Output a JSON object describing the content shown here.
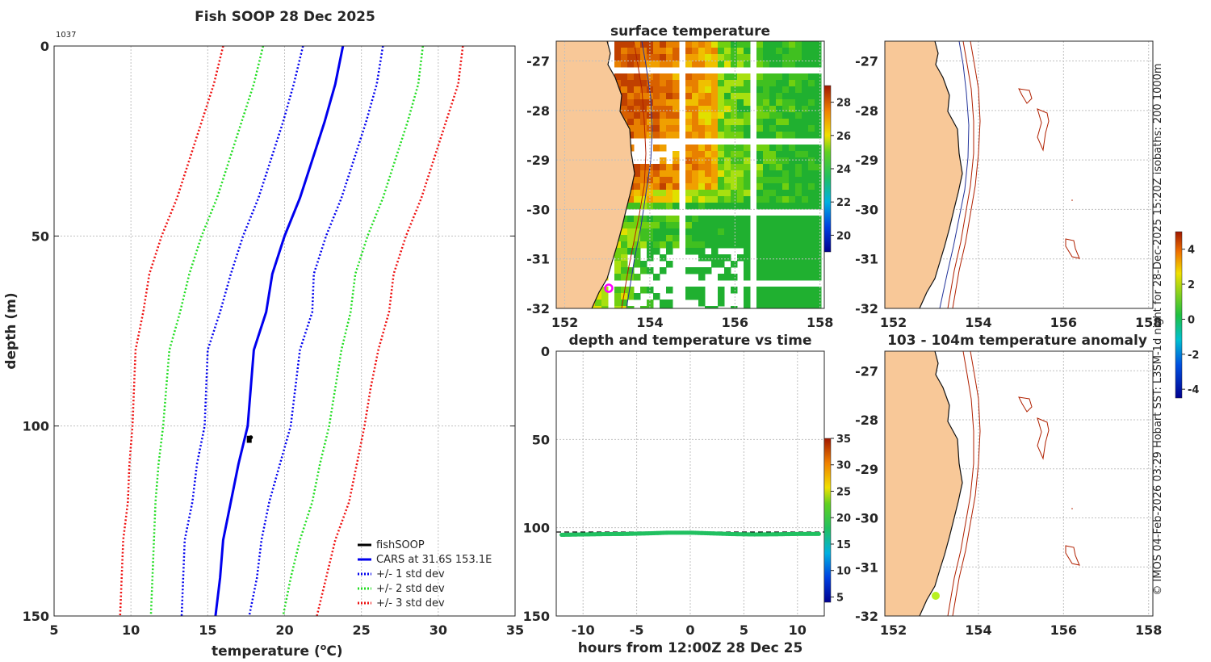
{
  "colors": {
    "fishsoop": "#000000",
    "cars": "#0000ee",
    "std1": "#0000ee",
    "std2": "#22dd22",
    "std3": "#ee1111",
    "land": "#f8c898",
    "isobath200": "#ee2200",
    "isobath1000": "#22339a",
    "marker": "#ff00ff",
    "anomaly_point": "#b8f020"
  },
  "profile": {
    "title": "Fish SOOP 28 Dec 2025",
    "corner_label": "1037",
    "xlabel_main": "temperature (",
    "xlabel_sup": "o",
    "xlabel_end": "C)",
    "ylabel": "depth (m)",
    "legend": [
      "fishSOOP",
      "CARS at 31.6S 153.1E",
      "+/- 1 std dev",
      "+/- 2 std dev",
      "+/- 3 std dev"
    ]
  },
  "sst": {
    "title": "surface temperature",
    "colorbar_ticks": [
      "28",
      "26",
      "24",
      "22",
      "20"
    ]
  },
  "timeseries": {
    "title": "depth and temperature vs time",
    "xlabel": "hours from 12:00Z 28 Dec 25",
    "colorbar_ticks": [
      "35",
      "30",
      "25",
      "20",
      "15",
      "10",
      "5"
    ]
  },
  "anomaly": {
    "title": "103 - 104m temperature anomaly",
    "colorbar_ticks": [
      "4",
      "2",
      "0",
      "-2",
      "-4"
    ]
  },
  "side_note": "© IMOS 04-Feb-2026 03:29 Hobart SST: L3SM-1d night for 28-Dec-2025 15:20Z isobaths: 200  1000m",
  "chart_data": [
    {
      "type": "line",
      "title": "Fish SOOP 28 Dec 2025",
      "xlabel": "temperature (oC)",
      "ylabel": "depth (m)",
      "xlim": [
        5,
        35
      ],
      "ylim": [
        150,
        0
      ],
      "xticks": [
        "5",
        "10",
        "15",
        "20",
        "25",
        "30",
        "35"
      ],
      "yticks": [
        "0",
        "50",
        "100",
        "150"
      ],
      "depth": [
        0,
        10,
        20,
        30,
        40,
        50,
        60,
        70,
        80,
        90,
        100,
        110,
        120,
        130,
        140,
        150
      ],
      "series": [
        {
          "name": "CARS at 31.6S 153.1E",
          "style": "solid",
          "color": "cars",
          "values": [
            23.8,
            23.3,
            22.6,
            21.8,
            21.0,
            20.0,
            19.2,
            18.8,
            18.0,
            17.8,
            17.6,
            17.0,
            16.5,
            16.0,
            15.8,
            15.5
          ]
        },
        {
          "name": "+/- 1 std dev",
          "style": "dotted",
          "color": "std1",
          "values": [
            21.2,
            20.6,
            19.9,
            19.1,
            18.3,
            17.3,
            16.5,
            15.8,
            15.0,
            14.9,
            14.8,
            14.3,
            14.0,
            13.5,
            13.4,
            13.3
          ]
        },
        {
          "name": "+/- 1 std dev",
          "style": "dotted",
          "color": "std1",
          "values": [
            26.4,
            26.0,
            25.3,
            24.5,
            23.7,
            22.7,
            21.9,
            21.8,
            21.0,
            20.7,
            20.4,
            19.7,
            19.0,
            18.5,
            18.2,
            17.7
          ]
        },
        {
          "name": "+/- 2 std dev",
          "style": "dotted",
          "color": "std2",
          "values": [
            18.6,
            18.0,
            17.2,
            16.4,
            15.6,
            14.6,
            13.8,
            13.2,
            12.5,
            12.3,
            12.1,
            11.8,
            11.6,
            11.5,
            11.4,
            11.3
          ]
        },
        {
          "name": "+/- 2 std dev",
          "style": "dotted",
          "color": "std2",
          "values": [
            29.0,
            28.7,
            28.0,
            27.2,
            26.4,
            25.4,
            24.6,
            24.3,
            23.7,
            23.3,
            22.9,
            22.3,
            21.8,
            21.0,
            20.4,
            19.9
          ]
        },
        {
          "name": "+/- 3 std dev",
          "style": "dotted",
          "color": "std3",
          "values": [
            16.0,
            15.4,
            14.6,
            13.8,
            13.0,
            12.0,
            11.2,
            10.8,
            10.3,
            10.2,
            10.1,
            9.9,
            9.8,
            9.5,
            9.4,
            9.3
          ]
        },
        {
          "name": "+/- 3 std dev",
          "style": "dotted",
          "color": "std3",
          "values": [
            31.6,
            31.3,
            30.5,
            29.7,
            28.9,
            27.9,
            27.1,
            26.8,
            26.1,
            25.6,
            25.2,
            24.7,
            24.2,
            23.3,
            22.7,
            22.1
          ]
        }
      ],
      "fishsoop": {
        "name": "fishSOOP",
        "temperature": 17.7,
        "depth_range": [
          103,
          104
        ]
      }
    },
    {
      "type": "heatmap",
      "title": "surface temperature",
      "xlim": [
        151.8,
        158.1
      ],
      "ylim": [
        -32,
        -26.6
      ],
      "xticks": [
        "152",
        "154",
        "156",
        "158"
      ],
      "yticks": [
        "-27",
        "-28",
        "-29",
        "-30",
        "-31",
        "-32"
      ],
      "colorbar": {
        "range": [
          19,
          29
        ],
        "ticks": [
          "20",
          "22",
          "24",
          "26",
          "28"
        ]
      },
      "marker": {
        "lon": 153.1,
        "lat": -31.6
      }
    },
    {
      "type": "scatter",
      "title": "depth and temperature vs time",
      "xlabel": "hours from 12:00Z 28 Dec 25",
      "xlim": [
        -12.5,
        12.5
      ],
      "ylim": [
        150,
        0
      ],
      "xticks": [
        "-10",
        "-5",
        "0",
        "5",
        "10"
      ],
      "yticks": [
        "0",
        "50",
        "100",
        "150"
      ],
      "hours": [
        -12,
        -10,
        -8,
        -6,
        -4,
        -2,
        0,
        2,
        4,
        6,
        8,
        10,
        12
      ],
      "depth": [
        104,
        103.8,
        103.6,
        103.5,
        103.2,
        102.8,
        102.8,
        103.2,
        103.6,
        103.8,
        103.7,
        103.5,
        103.5
      ],
      "temperature": [
        17.7,
        17.7,
        17.7,
        17.7,
        17.7,
        17.7,
        17.7,
        17.7,
        17.7,
        17.7,
        17.7,
        17.7,
        17.7
      ],
      "colorbar": {
        "range": [
          4,
          35
        ],
        "ticks": [
          "5",
          "10",
          "15",
          "20",
          "25",
          "30",
          "35"
        ]
      }
    },
    {
      "type": "scatter",
      "title": "103 - 104m temperature anomaly",
      "xlim": [
        151.8,
        158.1
      ],
      "ylim": [
        -32,
        -26.6
      ],
      "xticks": [
        "152",
        "154",
        "156",
        "158"
      ],
      "yticks": [
        "-27",
        "-28",
        "-29",
        "-30",
        "-31",
        "-32"
      ],
      "colorbar": {
        "range": [
          -4.5,
          5
        ],
        "ticks": [
          "-4",
          "-2",
          "0",
          "2",
          "4"
        ]
      },
      "point": {
        "lon": 153.1,
        "lat": -31.6,
        "anomaly": 1.0
      }
    }
  ]
}
